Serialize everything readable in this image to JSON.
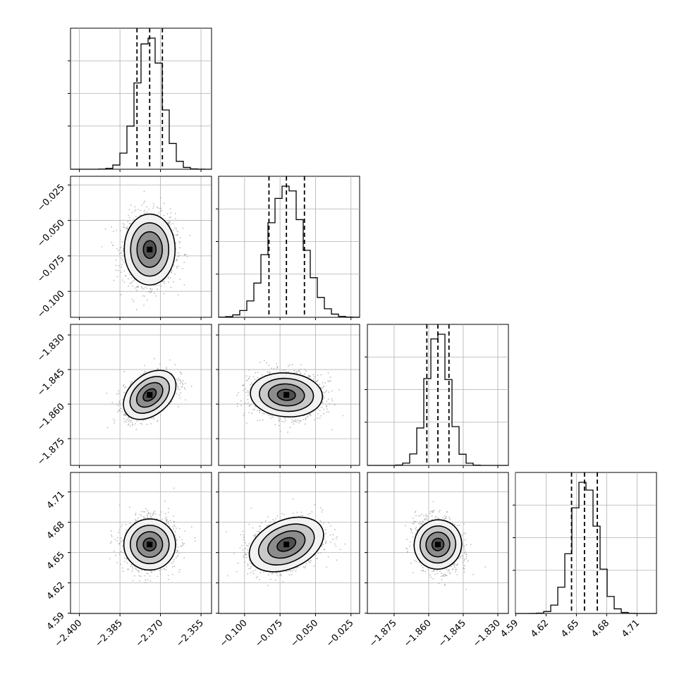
{
  "chart_data": {
    "type": "corner",
    "parameters": [
      {
        "center": -2.374,
        "q16": -2.3787,
        "q84": -2.3693,
        "range": [
          -2.4033,
          -2.3511
        ],
        "ticks": [
          "−2.400",
          "−2.385",
          "−2.370",
          "−2.355"
        ],
        "tick_values": [
          -2.4,
          -2.385,
          -2.37,
          -2.355
        ],
        "show_x_ticks": true,
        "show_y_ticks": false
      },
      {
        "center": -0.0705,
        "q16": -0.0828,
        "q84": -0.0578,
        "range": [
          -0.1183,
          -0.0189
        ],
        "ticks": [
          "−0.025",
          "−0.050",
          "−0.075",
          "−0.100"
        ],
        "tick_values": [
          -0.025,
          -0.05,
          -0.075,
          -0.1
        ],
        "x_ticks": [
          "−0.100",
          "−0.075",
          "−0.050",
          "−0.025"
        ],
        "x_tick_values": [
          -0.1,
          -0.075,
          -0.05,
          -0.025
        ]
      },
      {
        "center": -1.856,
        "q16": -1.8608,
        "q84": -1.8512,
        "range": [
          -1.8866,
          -1.8254
        ],
        "ticks": [
          "−1.830",
          "−1.845",
          "−1.860",
          "−1.875"
        ],
        "tick_values": [
          -1.83,
          -1.845,
          -1.86,
          -1.875
        ],
        "x_ticks": [
          "−1.875",
          "−1.860",
          "−1.845",
          "−1.830"
        ],
        "x_tick_values": [
          -1.875,
          -1.86,
          -1.845,
          -1.83
        ]
      },
      {
        "center": 4.658,
        "q16": 4.6452,
        "q84": 4.6707,
        "range": [
          4.5897,
          4.7293
        ],
        "ticks": [
          "4.71",
          "4.68",
          "4.65",
          "4.62",
          "4.59"
        ],
        "tick_values": [
          4.71,
          4.68,
          4.65,
          4.62,
          4.59
        ],
        "x_ticks": [
          "4.59",
          "4.62",
          "4.65",
          "4.68",
          "4.71"
        ],
        "x_tick_values": [
          4.59,
          4.62,
          4.65,
          4.68,
          4.71
        ]
      }
    ],
    "correlations": {
      "1-0": 0.0,
      "2-0": 0.5,
      "2-1": -0.05,
      "3-0": 0.05,
      "3-1": 0.3,
      "3-2": -0.2
    },
    "histogram_style": "step",
    "quantiles": [
      0.16,
      0.5,
      0.84
    ],
    "grid": true,
    "colors": {
      "line": "#000000",
      "scatter": "#a0a0a0",
      "grid": "#b0b0b0"
    }
  }
}
